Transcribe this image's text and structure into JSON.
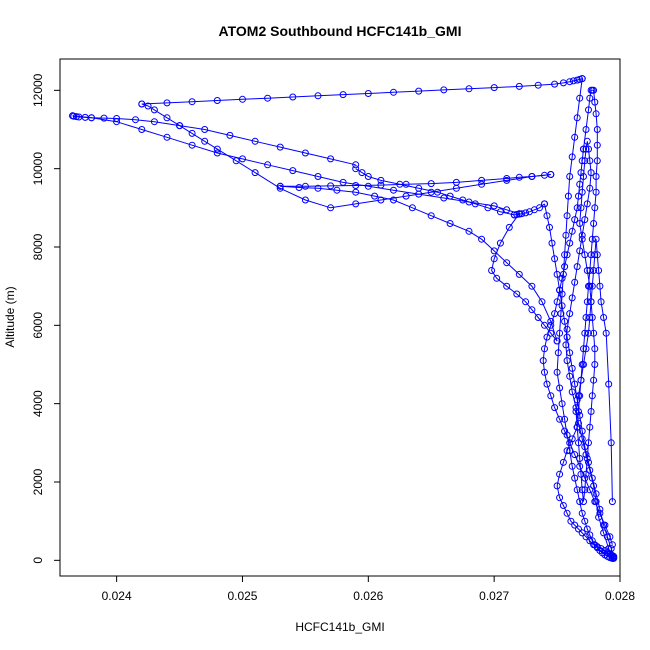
{
  "chart_data": {
    "type": "scatter",
    "title": "ATOM2 Southbound HCFC141b_GMI",
    "xlabel": "HCFC141b_GMI",
    "ylabel": "Altitude (m)",
    "xlim": [
      0.02355,
      0.028
    ],
    "ylim": [
      -400,
      12800
    ],
    "x_ticks": [
      0.024,
      0.025,
      0.026,
      0.027,
      0.028
    ],
    "x_tick_labels": [
      "0.024",
      "0.025",
      "0.026",
      "0.027",
      "0.028"
    ],
    "y_ticks": [
      0,
      2000,
      4000,
      6000,
      8000,
      10000,
      12000
    ],
    "y_tick_labels": [
      "0",
      "2000",
      "4000",
      "6000",
      "8000",
      "10000",
      "12000"
    ],
    "series_color": "#0000ff",
    "marker": "open-circle",
    "connected": true,
    "series": [
      {
        "x": [
          0.02794,
          0.02791,
          0.02787,
          0.02783,
          0.02781,
          0.02779,
          0.02776,
          0.02773,
          0.0277,
          0.02767,
          0.02765,
          0.02762,
          0.0276,
          0.02758,
          0.02757,
          0.02758,
          0.0276,
          0.02762,
          0.02764,
          0.02766,
          0.02768,
          0.0277,
          0.02772,
          0.02774,
          0.02776,
          0.02777,
          0.02776,
          0.02775,
          0.02774,
          0.02773,
          0.02772,
          0.02771,
          0.0277,
          0.02769,
          0.02768,
          0.0277,
          0.02772,
          0.02774,
          0.02776
        ],
        "y": [
          50,
          300,
          700,
          1100,
          1500,
          1900,
          2300,
          2700,
          3100,
          3500,
          3900,
          4300,
          4700,
          5100,
          5500,
          5900,
          6300,
          6700,
          7100,
          7500,
          7900,
          8300,
          8700,
          9100,
          9500,
          9900,
          10200,
          10500,
          10700,
          10500,
          10200,
          9800,
          9400,
          9000,
          8600,
          8200,
          7800,
          7400,
          7000
        ]
      },
      {
        "x": [
          0.02776,
          0.02777,
          0.02778,
          0.02779,
          0.0278,
          0.0278,
          0.02779,
          0.02778,
          0.02777,
          0.02776,
          0.02775,
          0.02774,
          0.02773,
          0.02772,
          0.02771,
          0.0277,
          0.02769,
          0.02768,
          0.02767,
          0.02766,
          0.02765,
          0.02767,
          0.02769,
          0.02771,
          0.02773,
          0.02775,
          0.02776,
          0.02777,
          0.02778,
          0.02779,
          0.0278,
          0.02781,
          0.02782,
          0.02783,
          0.02784,
          0.02785,
          0.02787,
          0.02789,
          0.02791,
          0.02793,
          0.02794
        ],
        "y": [
          7000,
          6600,
          6200,
          5800,
          5400,
          5000,
          4600,
          4200,
          3800,
          3400,
          3000,
          2600,
          2200,
          1800,
          1500,
          1800,
          2200,
          2600,
          3000,
          3400,
          3800,
          4200,
          4600,
          5000,
          5400,
          5800,
          6200,
          6600,
          7000,
          7400,
          7800,
          8200,
          7800,
          7400,
          7000,
          6600,
          6200,
          5800,
          4500,
          3000,
          1500
        ]
      },
      {
        "x": [
          0.02794,
          0.02792,
          0.02788,
          0.02784,
          0.0278,
          0.02776,
          0.02772,
          0.02768,
          0.02764,
          0.0276,
          0.02756,
          0.02752,
          0.02748,
          0.02745,
          0.02742,
          0.0274,
          0.02739,
          0.0274,
          0.02742,
          0.02745,
          0.02748,
          0.0275,
          0.02752,
          0.02754,
          0.02756,
          0.02758,
          0.0276,
          0.02762,
          0.02764,
          0.02766,
          0.02767,
          0.02768,
          0.02769,
          0.0277,
          0.02771
        ],
        "y": [
          400,
          600,
          900,
          1200,
          1500,
          1800,
          2100,
          2400,
          2700,
          3000,
          3300,
          3600,
          3900,
          4200,
          4500,
          4800,
          5100,
          5400,
          5700,
          6000,
          6300,
          6600,
          6900,
          7200,
          7500,
          7800,
          8100,
          8400,
          8700,
          9000,
          9300,
          9600,
          9900,
          10200,
          10500
        ]
      },
      {
        "x": [
          0.02771,
          0.02773,
          0.02775,
          0.02776,
          0.02777,
          0.02778,
          0.02779,
          0.0278,
          0.02781,
          0.02782,
          0.02782,
          0.02782,
          0.02781,
          0.02781,
          0.0278,
          0.02779,
          0.02778,
          0.02777,
          0.02776,
          0.02775,
          0.02774,
          0.02773,
          0.02772,
          0.02771,
          0.0277,
          0.02769,
          0.02768,
          0.02767,
          0.02766
        ],
        "y": [
          10500,
          11000,
          11500,
          11800,
          12000,
          12000,
          12000,
          11700,
          11400,
          11000,
          10600,
          10200,
          9800,
          9400,
          9000,
          8600,
          8200,
          7800,
          7400,
          7000,
          6600,
          6200,
          5800,
          5400,
          5000,
          4600,
          4200,
          3800,
          3400
        ]
      },
      {
        "x": [
          0.02766,
          0.02762,
          0.02758,
          0.02755,
          0.02752,
          0.0275,
          0.02752,
          0.02755,
          0.02758,
          0.02761,
          0.02764,
          0.02767,
          0.0277,
          0.02773,
          0.02776,
          0.02779,
          0.02782,
          0.02785,
          0.02788,
          0.0279,
          0.02792,
          0.02793,
          0.02794,
          0.02794,
          0.02795,
          0.02795,
          0.02795
        ],
        "y": [
          3400,
          3100,
          2800,
          2500,
          2200,
          1900,
          1600,
          1400,
          1200,
          1000,
          900,
          800,
          700,
          600,
          500,
          400,
          350,
          300,
          250,
          200,
          170,
          140,
          120,
          100,
          80,
          60,
          50
        ]
      },
      {
        "x": [
          0.02795,
          0.02793,
          0.0279,
          0.02787,
          0.02784,
          0.02781,
          0.02778,
          0.02775,
          0.02772,
          0.0277,
          0.02768,
          0.02766,
          0.02764,
          0.02762,
          0.0276,
          0.02758,
          0.02756,
          0.02754,
          0.02752,
          0.0275,
          0.02748,
          0.02746,
          0.02744,
          0.02742,
          0.0274
        ],
        "y": [
          100,
          300,
          600,
          900,
          1300,
          1700,
          2100,
          2500,
          2900,
          3300,
          3700,
          4100,
          4500,
          4900,
          5300,
          5700,
          6100,
          6500,
          6900,
          7300,
          7700,
          8100,
          8500,
          8800,
          9100
        ]
      },
      {
        "x": [
          0.0274,
          0.02736,
          0.02732,
          0.02728,
          0.02725,
          0.02722,
          0.0272,
          0.02718,
          0.02716
        ],
        "y": [
          9100,
          9000,
          8950,
          8900,
          8870,
          8850,
          8840,
          8830,
          8820
        ]
      },
      {
        "x": [
          0.02716,
          0.02705,
          0.02695,
          0.02685,
          0.02675,
          0.02665,
          0.02655,
          0.0264,
          0.02625,
          0.0261,
          0.026,
          0.02595,
          0.0259
        ],
        "y": [
          8820,
          8900,
          9000,
          9100,
          9200,
          9300,
          9400,
          9500,
          9600,
          9700,
          9800,
          9900,
          10000
        ]
      },
      {
        "x": [
          0.0259,
          0.0257,
          0.0255,
          0.0253,
          0.0251,
          0.0249,
          0.0247,
          0.0245,
          0.0243,
          0.02415,
          0.024,
          0.0239,
          0.0238,
          0.02375,
          0.0237,
          0.02368,
          0.02366,
          0.02365
        ],
        "y": [
          10100,
          10250,
          10400,
          10550,
          10700,
          10850,
          11000,
          11100,
          11200,
          11250,
          11280,
          11290,
          11300,
          11310,
          11320,
          11330,
          11340,
          11350
        ]
      },
      {
        "x": [
          0.02365,
          0.0238,
          0.024,
          0.0242,
          0.0244,
          0.0246,
          0.0248,
          0.025,
          0.0252,
          0.0254,
          0.0256,
          0.0258,
          0.026,
          0.0262,
          0.0264,
          0.0266,
          0.0268,
          0.027,
          0.0271,
          0.0272
        ],
        "y": [
          11350,
          11300,
          11200,
          11000,
          10800,
          10600,
          10400,
          10250,
          10100,
          9950,
          9800,
          9650,
          9550,
          9450,
          9350,
          9250,
          9150,
          9050,
          8950,
          8850
        ]
      },
      {
        "x": [
          0.0272,
          0.02712,
          0.02705,
          0.027,
          0.02698,
          0.02702,
          0.0271,
          0.02718,
          0.02725,
          0.0273,
          0.02735,
          0.0274,
          0.02745,
          0.0275
        ],
        "y": [
          8850,
          8500,
          8100,
          7700,
          7400,
          7200,
          7000,
          6800,
          6600,
          6400,
          6200,
          6000,
          5800,
          5600
        ]
      },
      {
        "x": [
          0.0275,
          0.02745,
          0.02738,
          0.0273,
          0.0272,
          0.0271,
          0.027,
          0.0269,
          0.0268,
          0.02665,
          0.0265,
          0.02635,
          0.0262,
          0.02605,
          0.0259,
          0.02575,
          0.0256,
          0.02545,
          0.0253
        ],
        "y": [
          5600,
          6100,
          6600,
          7000,
          7300,
          7600,
          7900,
          8200,
          8400,
          8600,
          8800,
          9000,
          9200,
          9300,
          9400,
          9450,
          9500,
          9520,
          9550
        ]
      },
      {
        "x": [
          0.0253,
          0.0255,
          0.0257,
          0.0259,
          0.0261,
          0.0263,
          0.0265,
          0.0267,
          0.0269,
          0.0271,
          0.0272,
          0.0273,
          0.0274,
          0.02745
        ],
        "y": [
          9550,
          9550,
          9560,
          9570,
          9580,
          9600,
          9620,
          9650,
          9700,
          9750,
          9780,
          9800,
          9830,
          9850
        ]
      },
      {
        "x": [
          0.02745,
          0.0273,
          0.0271,
          0.0269,
          0.0267,
          0.0265,
          0.0263,
          0.0261,
          0.0259,
          0.0257,
          0.0255,
          0.0253,
          0.0251,
          0.02495,
          0.0248,
          0.0247,
          0.0246,
          0.0245,
          0.0244,
          0.0243,
          0.02425,
          0.0242
        ],
        "y": [
          9850,
          9800,
          9700,
          9600,
          9500,
          9400,
          9300,
          9200,
          9100,
          9000,
          9200,
          9500,
          9900,
          10200,
          10500,
          10700,
          10900,
          11100,
          11300,
          11500,
          11600,
          11650
        ]
      },
      {
        "x": [
          0.0242,
          0.0244,
          0.0246,
          0.0248,
          0.025,
          0.0252,
          0.0254,
          0.0256,
          0.0258,
          0.026,
          0.0262,
          0.0264,
          0.0266,
          0.0268,
          0.027,
          0.0272,
          0.02735,
          0.02748,
          0.02755,
          0.0276,
          0.02763,
          0.02766,
          0.02768,
          0.0277
        ],
        "y": [
          11650,
          11680,
          11710,
          11740,
          11770,
          11800,
          11830,
          11860,
          11890,
          11920,
          11950,
          11980,
          12010,
          12040,
          12070,
          12100,
          12130,
          12160,
          12190,
          12220,
          12240,
          12260,
          12280,
          12300
        ]
      },
      {
        "x": [
          0.0277,
          0.02768,
          0.02766,
          0.02764,
          0.02762,
          0.0276,
          0.02759,
          0.02758,
          0.02757,
          0.02756,
          0.02755,
          0.02754,
          0.02753,
          0.02752,
          0.02751,
          0.0275,
          0.02752,
          0.02754,
          0.02756,
          0.02758,
          0.0276,
          0.02762,
          0.02764,
          0.02766,
          0.02768,
          0.0277,
          0.02772,
          0.02774,
          0.02776,
          0.02778,
          0.0278,
          0.02782,
          0.02784,
          0.02786,
          0.02788,
          0.0279,
          0.02792,
          0.02794
        ],
        "y": [
          12300,
          11800,
          11300,
          10800,
          10300,
          9800,
          9300,
          8800,
          8300,
          7800,
          7300,
          6800,
          6300,
          5800,
          5300,
          4800,
          4400,
          4000,
          3600,
          3200,
          2800,
          2400,
          2100,
          1800,
          1500,
          1200,
          1000,
          800,
          650,
          500,
          400,
          320,
          250,
          190,
          140,
          100,
          70,
          50
        ]
      }
    ]
  }
}
